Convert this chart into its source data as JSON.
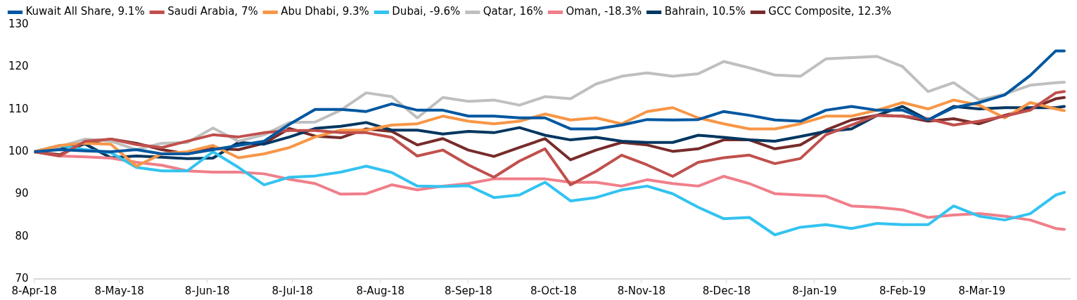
{
  "chart_data": {
    "type": "line",
    "legend": "top",
    "grid": false,
    "marker": "none",
    "line_style": "solid",
    "x": [
      "2018-04-08",
      "2018-04-17",
      "2018-04-26",
      "2018-05-05",
      "2018-05-14",
      "2018-05-23",
      "2018-06-01",
      "2018-06-10",
      "2018-06-19",
      "2018-06-28",
      "2018-07-07",
      "2018-07-16",
      "2018-07-25",
      "2018-08-03",
      "2018-08-12",
      "2018-08-21",
      "2018-08-30",
      "2018-09-08",
      "2018-09-17",
      "2018-09-26",
      "2018-10-05",
      "2018-10-14",
      "2018-10-23",
      "2018-11-01",
      "2018-11-10",
      "2018-11-19",
      "2018-11-28",
      "2018-12-07",
      "2018-12-16",
      "2018-12-25",
      "2019-01-03",
      "2019-01-12",
      "2019-01-21",
      "2019-01-30",
      "2019-02-08",
      "2019-02-17",
      "2019-02-26",
      "2019-03-07",
      "2019-03-16",
      "2019-03-25",
      "2019-04-03",
      "2019-04-06"
    ],
    "xlim": [
      "2018-04-08",
      "2019-04-08"
    ],
    "xticks": [
      {
        "value": "2018-04-08",
        "label": "8-Apr-18"
      },
      {
        "value": "2018-05-08",
        "label": "8-May-18"
      },
      {
        "value": "2018-06-08",
        "label": "8-Jun-18"
      },
      {
        "value": "2018-07-08",
        "label": "8-Jul-18"
      },
      {
        "value": "2018-08-08",
        "label": "8-Aug-18"
      },
      {
        "value": "2018-09-08",
        "label": "8-Sep-18"
      },
      {
        "value": "2018-10-08",
        "label": "8-Oct-18"
      },
      {
        "value": "2018-11-08",
        "label": "8-Nov-18"
      },
      {
        "value": "2018-12-08",
        "label": "8-Dec-18"
      },
      {
        "value": "2019-01-08",
        "label": "8-Jan-19"
      },
      {
        "value": "2019-02-08",
        "label": "8-Feb-19"
      },
      {
        "value": "2019-03-08",
        "label": "8-Mar-19"
      }
    ],
    "ylim": [
      70,
      130
    ],
    "yticks": [
      70,
      80,
      90,
      100,
      110,
      120,
      130
    ],
    "series": [
      {
        "name": "Kuwait All Share, 9.1%",
        "color": "#0057a0",
        "values": [
          100,
          100.5,
          100.2,
          100,
          100.5,
          99.5,
          99.5,
          100.5,
          101.5,
          102.5,
          106.5,
          110,
          110,
          109.5,
          111.3,
          109.8,
          109.8,
          108.4,
          108.4,
          108,
          108,
          105.4,
          105.4,
          106.3,
          107.6,
          107.5,
          107.6,
          109.5,
          108.6,
          107.5,
          107.2,
          109.8,
          110.7,
          109.8,
          109.8,
          107.5,
          110.4,
          111.6,
          113.4,
          118,
          123.8,
          123.8
        ]
      },
      {
        "name": "Saudi Arabia, 7%",
        "color": "#c0504d",
        "values": [
          100,
          99,
          102.5,
          103,
          101.7,
          101,
          102.5,
          104,
          103.5,
          104.5,
          105,
          105,
          104.5,
          104.5,
          103.4,
          99,
          100.4,
          96.9,
          94,
          97.8,
          100.7,
          92.2,
          95.4,
          99.2,
          96.9,
          94.2,
          97.5,
          98.6,
          99.2,
          97.2,
          98.4,
          104,
          106.3,
          108.6,
          108.4,
          107.8,
          106.3,
          107.2,
          108.4,
          109.8,
          113.9,
          114.2
        ]
      },
      {
        "name": "Abu Dhabi, 9.3%",
        "color": "#f79646",
        "values": [
          100,
          101.5,
          102,
          101.8,
          96.6,
          99.5,
          100,
          101.5,
          98.6,
          99.5,
          101,
          103.5,
          105.1,
          105.1,
          106.3,
          106.6,
          108.4,
          107.2,
          106.6,
          107.2,
          108.9,
          107.5,
          108,
          106.6,
          109.5,
          110.4,
          108,
          106.6,
          105.4,
          105.4,
          106.6,
          108.4,
          108.4,
          109.8,
          111.6,
          110.1,
          112.2,
          111,
          108,
          111.6,
          110.1,
          109.7
        ]
      },
      {
        "name": "Dubai, -9.6%",
        "color": "#33c3f0",
        "values": [
          100,
          101.5,
          100.5,
          99.8,
          96.3,
          95.5,
          95.5,
          100,
          96.3,
          92.2,
          94,
          94.3,
          95.2,
          96.6,
          95.1,
          91.9,
          91.8,
          92,
          89.2,
          89.8,
          92.8,
          88.4,
          89.2,
          91,
          91.9,
          90.1,
          86.9,
          84.2,
          84.5,
          80.4,
          82.2,
          82.8,
          81.9,
          83.1,
          82.8,
          82.8,
          87.2,
          84.8,
          83.9,
          85.4,
          89.8,
          90.4
        ]
      },
      {
        "name": "Qatar, 16%",
        "color": "#bfbfbf",
        "values": [
          100,
          101.2,
          103,
          102.5,
          100.5,
          102,
          102.2,
          105.6,
          102.5,
          104,
          106.9,
          107,
          109.8,
          113.9,
          113,
          108,
          112.8,
          111.9,
          112.2,
          111,
          113,
          112.5,
          116,
          117.8,
          118.6,
          117.8,
          118.4,
          121.3,
          119.8,
          118.1,
          117.8,
          121.9,
          122.2,
          122.5,
          120.1,
          114.2,
          116.3,
          112.2,
          113.6,
          115.7,
          116.3,
          116.4
        ]
      },
      {
        "name": "Oman, -18.3%",
        "color": "#f07f8a",
        "values": [
          100,
          99,
          98.8,
          98.5,
          97.5,
          96.8,
          95.5,
          95.2,
          95.2,
          94.8,
          93.5,
          92.5,
          90,
          90.1,
          92.2,
          91,
          91.9,
          92.5,
          93.6,
          93.6,
          93.6,
          92.8,
          92.8,
          91.9,
          93.4,
          92.5,
          91.9,
          94.2,
          92.5,
          90.1,
          89.8,
          89.5,
          87.2,
          86.9,
          86.3,
          84.5,
          85.1,
          85.4,
          84.8,
          83.9,
          81.9,
          81.7
        ]
      },
      {
        "name": "Bahrain, 10.5%",
        "color": "#003660",
        "values": [
          100,
          100.8,
          101.8,
          98.6,
          99,
          98.7,
          98.4,
          98.5,
          102.2,
          101.8,
          103.5,
          105.5,
          106,
          106.9,
          105.1,
          105.1,
          104.2,
          104.8,
          104.5,
          105.7,
          103.9,
          102.8,
          103.4,
          102.5,
          102.2,
          102.2,
          103.9,
          103.4,
          102.8,
          102.5,
          103.6,
          104.8,
          105.4,
          108.6,
          110.7,
          107.5,
          110.7,
          110.1,
          110.4,
          110.4,
          110.4,
          110.7
        ]
      },
      {
        "name": "GCC Composite, 12.3%",
        "color": "#772c2a",
        "values": [
          100,
          99.3,
          102,
          103,
          102,
          100.5,
          99.5,
          100.8,
          100.5,
          102,
          105.5,
          103.7,
          103.3,
          105.4,
          104.8,
          101.6,
          103.1,
          100.4,
          98.9,
          101,
          103.1,
          98.1,
          100.4,
          102.2,
          101.6,
          100.1,
          100.7,
          102.8,
          102.8,
          100.7,
          101.6,
          105.1,
          107.5,
          108.6,
          108.4,
          107.2,
          107.8,
          106.6,
          108.6,
          110.1,
          112.5,
          112.8
        ]
      }
    ]
  }
}
